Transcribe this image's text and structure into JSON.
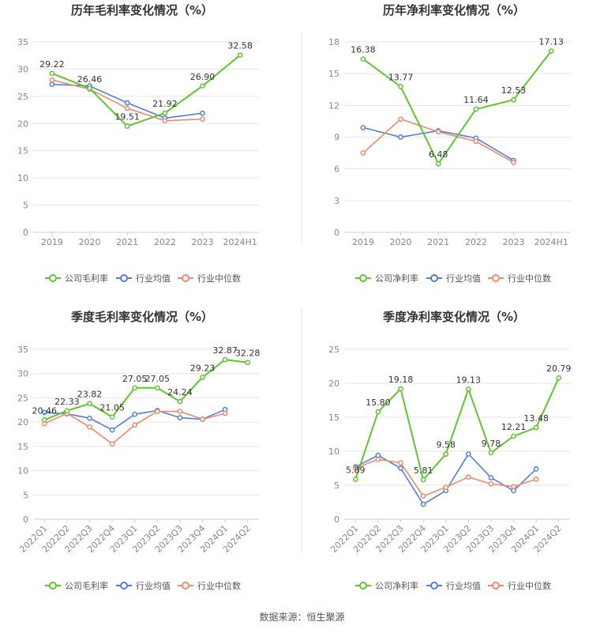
{
  "colors": {
    "company": "#5ec62e",
    "industry_avg": "#4f7fe0",
    "industry_median": "#f08a6a",
    "grid": "#e6e6e6",
    "axis": "#cccccc",
    "divider": "#e8e8e8"
  },
  "legend_labels": [
    "行业均值",
    "行业中位数"
  ],
  "source": "数据来源：恒生聚源",
  "chart_data": [
    {
      "id": "annual-gross",
      "type": "line",
      "title": "历年毛利率变化情况（%）",
      "categories": [
        "2019",
        "2020",
        "2021",
        "2022",
        "2023",
        "2024H1"
      ],
      "ylim": [
        0,
        35
      ],
      "yticks": [
        0,
        5,
        10,
        15,
        20,
        25,
        30,
        35
      ],
      "series": [
        {
          "name": "公司毛利率",
          "key": "company",
          "values": [
            29.22,
            26.46,
            19.51,
            21.92,
            26.9,
            32.58
          ],
          "labels": [
            "29.22",
            "26.46",
            "19.51",
            "21.92",
            "26.90",
            "32.58"
          ]
        },
        {
          "name": "行业均值",
          "key": "industry_avg",
          "values": [
            27.2,
            26.9,
            23.8,
            21.0,
            21.9,
            null
          ]
        },
        {
          "name": "行业中位数",
          "key": "industry_median",
          "values": [
            28.0,
            26.3,
            22.8,
            20.5,
            20.8,
            null
          ]
        }
      ]
    },
    {
      "id": "annual-net",
      "type": "line",
      "title": "历年净利率变化情况（%）",
      "categories": [
        "2019",
        "2020",
        "2021",
        "2022",
        "2023",
        "2024H1"
      ],
      "ylim": [
        0,
        18
      ],
      "yticks": [
        0,
        3,
        6,
        9,
        12,
        15,
        18
      ],
      "series": [
        {
          "name": "公司净利率",
          "key": "company",
          "values": [
            16.38,
            13.77,
            6.48,
            11.64,
            12.53,
            17.13
          ],
          "labels": [
            "16.38",
            "13.77",
            "6.48",
            "11.64",
            "12.53",
            "17.13"
          ]
        },
        {
          "name": "行业均值",
          "key": "industry_avg",
          "values": [
            9.9,
            9.0,
            9.6,
            8.9,
            6.8,
            null
          ]
        },
        {
          "name": "行业中位数",
          "key": "industry_median",
          "values": [
            7.5,
            10.7,
            9.5,
            8.6,
            6.6,
            null
          ]
        }
      ]
    },
    {
      "id": "quarterly-gross",
      "type": "line",
      "title": "季度毛利率变化情况（%）",
      "categories": [
        "2022Q1",
        "2022Q2",
        "2022Q3",
        "2022Q4",
        "2023Q1",
        "2023Q2",
        "2023Q3",
        "2023Q4",
        "2024Q1",
        "2024Q2"
      ],
      "ylim": [
        0,
        35
      ],
      "yticks": [
        0,
        5,
        10,
        15,
        20,
        25,
        30,
        35
      ],
      "rotate_ticks": true,
      "series": [
        {
          "name": "公司毛利率",
          "key": "company",
          "values": [
            20.46,
            22.33,
            23.82,
            21.05,
            27.05,
            27.05,
            24.24,
            29.23,
            32.87,
            32.28
          ],
          "labels": [
            "20.46",
            "22.33",
            "23.82",
            "21.05",
            "27.05",
            "27.05",
            "24.24",
            "29.23",
            "32.87",
            "32.28"
          ]
        },
        {
          "name": "行业均值",
          "key": "industry_avg",
          "values": [
            22.0,
            21.7,
            20.8,
            18.4,
            21.6,
            22.4,
            20.9,
            20.6,
            22.6,
            null
          ]
        },
        {
          "name": "行业中位数",
          "key": "industry_median",
          "values": [
            19.7,
            21.8,
            19.0,
            15.5,
            19.4,
            22.2,
            22.2,
            20.6,
            21.8,
            null
          ]
        }
      ]
    },
    {
      "id": "quarterly-net",
      "type": "line",
      "title": "季度净利率变化情况（%）",
      "categories": [
        "2022Q1",
        "2022Q2",
        "2022Q3",
        "2022Q4",
        "2023Q1",
        "2023Q2",
        "2023Q3",
        "2023Q4",
        "2024Q1",
        "2024Q2"
      ],
      "ylim": [
        0,
        25
      ],
      "yticks": [
        0,
        5,
        10,
        15,
        20,
        25
      ],
      "rotate_ticks": true,
      "series": [
        {
          "name": "公司净利率",
          "key": "company",
          "values": [
            5.89,
            15.8,
            19.18,
            5.81,
            9.58,
            19.13,
            9.78,
            12.21,
            13.48,
            20.79
          ],
          "labels": [
            "5.89",
            "15.80",
            "19.18",
            "5.81",
            "9.58",
            "19.13",
            "9.78",
            "12.21",
            "13.48",
            "20.79"
          ]
        },
        {
          "name": "行业均值",
          "key": "industry_avg",
          "values": [
            7.7,
            9.4,
            7.5,
            2.2,
            4.2,
            9.6,
            6.1,
            4.2,
            7.4,
            null
          ]
        },
        {
          "name": "行业中位数",
          "key": "industry_median",
          "values": [
            7.5,
            8.8,
            8.3,
            3.4,
            4.7,
            6.2,
            5.2,
            4.8,
            5.9,
            null
          ]
        }
      ]
    }
  ]
}
